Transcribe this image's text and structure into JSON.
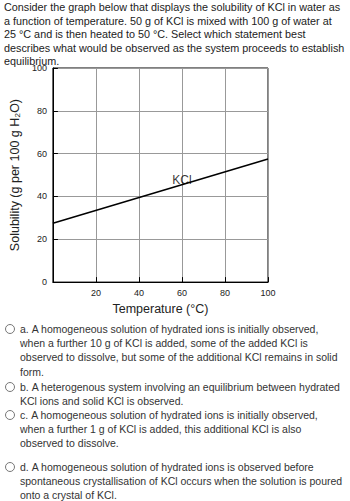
{
  "question": "Consider the graph below that displays the solubility of KCl in water as a function of temperature.  50 g of KCl is mixed with 100 g of water at 25 °C and is then heated to 50 °C.  Select which statement best describes what would be observed as the system proceeds to establish equilibrium.",
  "chart_data": {
    "type": "line",
    "x_label": "Temperature (°C)",
    "y_label": "Solubility (g per 100 g H₂O)",
    "series": [
      {
        "x": [
          0,
          100
        ],
        "values": [
          27.5,
          57.5
        ],
        "color": "#000000"
      }
    ],
    "annotations": [
      {
        "text": "KCl",
        "x": 60,
        "y": 47.5
      }
    ],
    "xlim": [
      0,
      100
    ],
    "xticks": [
      20,
      40,
      60,
      80,
      100
    ],
    "ylim": [
      0,
      100
    ],
    "yticks": [
      0,
      20,
      40,
      60,
      80,
      100
    ],
    "grid": true
  },
  "options": [
    {
      "letter": "a.",
      "text": "A homogeneous solution of hydrated ions is initially observed, when a further 10 g of KCl is added, some of the added KCl is observed to dissolve, but some of the additional KCl remains in solid form."
    },
    {
      "letter": "b.",
      "text": "A heterogenous system involving an equilibrium between hydrated KCl ions and solid KCl is observed."
    },
    {
      "letter": "c.",
      "text": "A homogeneous solution of hydrated ions is initially observed, when a further 1 g of KCl is added, this additional KCl is also observed to dissolve."
    },
    {
      "letter": "d.",
      "text": "A homogeneous solution of hydrated ions is observed before spontaneous crystallisation of KCl occurs when the solution is poured onto a crystal of KCl."
    }
  ]
}
